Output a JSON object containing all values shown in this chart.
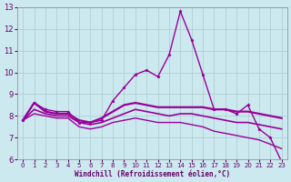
{
  "xlabel": "Windchill (Refroidissement éolien,°C)",
  "xlim": [
    -0.5,
    23.5
  ],
  "ylim": [
    6,
    13
  ],
  "xticks": [
    0,
    1,
    2,
    3,
    4,
    5,
    6,
    7,
    8,
    9,
    10,
    11,
    12,
    13,
    14,
    15,
    16,
    17,
    18,
    19,
    20,
    21,
    22,
    23
  ],
  "yticks": [
    6,
    7,
    8,
    9,
    10,
    11,
    12,
    13
  ],
  "background_color": "#cce9f0",
  "grid_color": "#aacccc",
  "line_color": "#990099",
  "series": [
    {
      "x": [
        0,
        1,
        2,
        3,
        4,
        5,
        6,
        7,
        8,
        9,
        10,
        11,
        12,
        13,
        14,
        15,
        16,
        17,
        18,
        19,
        20,
        21,
        22,
        23
      ],
      "y": [
        7.8,
        8.6,
        8.3,
        8.2,
        8.2,
        7.7,
        7.7,
        7.8,
        8.7,
        9.3,
        9.9,
        10.1,
        9.8,
        10.8,
        12.8,
        11.5,
        9.9,
        8.3,
        8.3,
        8.1,
        8.5,
        7.4,
        7.0,
        5.9
      ],
      "marker": "*",
      "markersize": 2.5,
      "linewidth": 1.0
    },
    {
      "x": [
        0,
        1,
        2,
        3,
        4,
        5,
        6,
        7,
        8,
        9,
        10,
        11,
        12,
        13,
        14,
        15,
        16,
        17,
        18,
        19,
        20,
        21,
        22,
        23
      ],
      "y": [
        7.8,
        8.6,
        8.2,
        8.1,
        8.1,
        7.8,
        7.7,
        7.9,
        8.2,
        8.5,
        8.6,
        8.5,
        8.4,
        8.4,
        8.4,
        8.4,
        8.4,
        8.3,
        8.3,
        8.2,
        8.2,
        8.1,
        8.0,
        7.9
      ],
      "marker": null,
      "markersize": 0,
      "linewidth": 1.6
    },
    {
      "x": [
        0,
        1,
        2,
        3,
        4,
        5,
        6,
        7,
        8,
        9,
        10,
        11,
        12,
        13,
        14,
        15,
        16,
        17,
        18,
        19,
        20,
        21,
        22,
        23
      ],
      "y": [
        7.8,
        8.3,
        8.1,
        8.0,
        8.0,
        7.7,
        7.6,
        7.7,
        7.9,
        8.1,
        8.3,
        8.2,
        8.1,
        8.0,
        8.1,
        8.1,
        8.0,
        7.9,
        7.8,
        7.7,
        7.7,
        7.6,
        7.5,
        7.4
      ],
      "marker": null,
      "markersize": 0,
      "linewidth": 1.2
    },
    {
      "x": [
        0,
        1,
        2,
        3,
        4,
        5,
        6,
        7,
        8,
        9,
        10,
        11,
        12,
        13,
        14,
        15,
        16,
        17,
        18,
        19,
        20,
        21,
        22,
        23
      ],
      "y": [
        7.8,
        8.1,
        8.0,
        7.9,
        7.9,
        7.5,
        7.4,
        7.5,
        7.7,
        7.8,
        7.9,
        7.8,
        7.7,
        7.7,
        7.7,
        7.6,
        7.5,
        7.3,
        7.2,
        7.1,
        7.0,
        6.9,
        6.7,
        6.5
      ],
      "marker": null,
      "markersize": 0,
      "linewidth": 1.0
    }
  ]
}
